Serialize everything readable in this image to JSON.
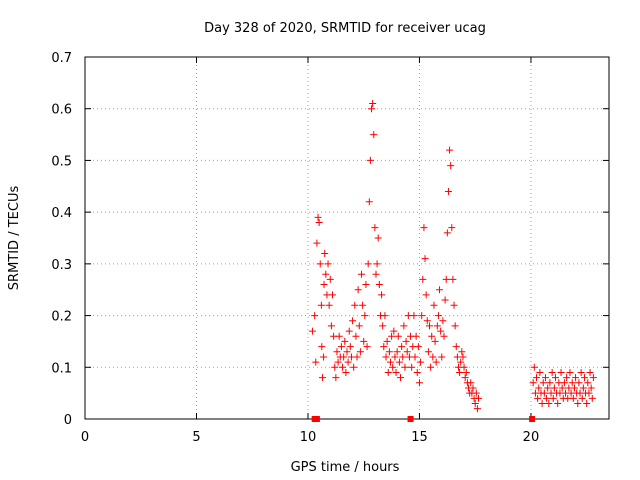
{
  "chart_data": {
    "type": "scatter",
    "title": "Day 328 of 2020, SRMTID for receiver ucag",
    "xlabel": "GPS time / hours",
    "ylabel": "SRMTID / TECUs",
    "xlim": [
      0,
      23.5
    ],
    "ylim": [
      0,
      0.7
    ],
    "x_ticks": [
      0,
      5,
      10,
      15,
      20
    ],
    "y_ticks": [
      0,
      0.1,
      0.2,
      0.3,
      0.4,
      0.5,
      0.6,
      0.7
    ],
    "x_tick_labels": [
      "0",
      "5",
      "10",
      "15",
      "20"
    ],
    "y_tick_labels": [
      "0",
      "0.1",
      "0.2",
      "0.3",
      "0.4",
      "0.5",
      "0.6",
      "0.7"
    ],
    "grid": true,
    "series": [
      {
        "name": "SRMTID",
        "color": "#ff0000",
        "marker": "plus",
        "points": [
          [
            10.2,
            0.17
          ],
          [
            10.3,
            0.2
          ],
          [
            10.35,
            0.11
          ],
          [
            10.4,
            0.34
          ],
          [
            10.45,
            0.39
          ],
          [
            10.5,
            0.38
          ],
          [
            10.55,
            0.3
          ],
          [
            10.6,
            0.22
          ],
          [
            10.62,
            0.14
          ],
          [
            10.65,
            0.08
          ],
          [
            10.7,
            0.12
          ],
          [
            10.72,
            0.26
          ],
          [
            10.75,
            0.32
          ],
          [
            10.8,
            0.28
          ],
          [
            10.85,
            0.24
          ],
          [
            10.9,
            0.3
          ],
          [
            10.95,
            0.22
          ],
          [
            11.0,
            0.27
          ],
          [
            11.05,
            0.18
          ],
          [
            11.1,
            0.24
          ],
          [
            11.15,
            0.16
          ],
          [
            11.2,
            0.1
          ],
          [
            11.25,
            0.08
          ],
          [
            11.3,
            0.13
          ],
          [
            11.35,
            0.11
          ],
          [
            11.4,
            0.16
          ],
          [
            11.45,
            0.12
          ],
          [
            11.5,
            0.14
          ],
          [
            11.55,
            0.1
          ],
          [
            11.6,
            0.12
          ],
          [
            11.65,
            0.15
          ],
          [
            11.7,
            0.09
          ],
          [
            11.75,
            0.13
          ],
          [
            11.8,
            0.11
          ],
          [
            11.85,
            0.17
          ],
          [
            11.9,
            0.14
          ],
          [
            11.95,
            0.12
          ],
          [
            12.0,
            0.19
          ],
          [
            12.05,
            0.1
          ],
          [
            12.1,
            0.22
          ],
          [
            12.15,
            0.16
          ],
          [
            12.2,
            0.12
          ],
          [
            12.25,
            0.25
          ],
          [
            12.3,
            0.18
          ],
          [
            12.35,
            0.13
          ],
          [
            12.4,
            0.28
          ],
          [
            12.45,
            0.22
          ],
          [
            12.5,
            0.15
          ],
          [
            12.55,
            0.2
          ],
          [
            12.6,
            0.26
          ],
          [
            12.65,
            0.14
          ],
          [
            12.7,
            0.3
          ],
          [
            12.75,
            0.42
          ],
          [
            12.8,
            0.5
          ],
          [
            12.85,
            0.6
          ],
          [
            12.9,
            0.61
          ],
          [
            12.95,
            0.55
          ],
          [
            13.0,
            0.37
          ],
          [
            13.05,
            0.28
          ],
          [
            13.1,
            0.3
          ],
          [
            13.15,
            0.35
          ],
          [
            13.2,
            0.26
          ],
          [
            13.25,
            0.2
          ],
          [
            13.3,
            0.24
          ],
          [
            13.35,
            0.18
          ],
          [
            13.4,
            0.14
          ],
          [
            13.45,
            0.2
          ],
          [
            13.5,
            0.12
          ],
          [
            13.55,
            0.15
          ],
          [
            13.6,
            0.09
          ],
          [
            13.65,
            0.13
          ],
          [
            13.7,
            0.11
          ],
          [
            13.75,
            0.16
          ],
          [
            13.8,
            0.1
          ],
          [
            13.85,
            0.17
          ],
          [
            13.9,
            0.12
          ],
          [
            13.95,
            0.09
          ],
          [
            14.0,
            0.13
          ],
          [
            14.05,
            0.16
          ],
          [
            14.1,
            0.11
          ],
          [
            14.15,
            0.08
          ],
          [
            14.2,
            0.14
          ],
          [
            14.25,
            0.12
          ],
          [
            14.3,
            0.18
          ],
          [
            14.35,
            0.1
          ],
          [
            14.4,
            0.15
          ],
          [
            14.45,
            0.13
          ],
          [
            14.5,
            0.2
          ],
          [
            14.55,
            0.12
          ],
          [
            14.6,
            0.16
          ],
          [
            14.65,
            0.1
          ],
          [
            14.7,
            0.14
          ],
          [
            14.75,
            0.2
          ],
          [
            14.8,
            0.12
          ],
          [
            14.85,
            0.16
          ],
          [
            14.9,
            0.09
          ],
          [
            14.95,
            0.14
          ],
          [
            15.0,
            0.07
          ],
          [
            15.05,
            0.11
          ],
          [
            15.1,
            0.2
          ],
          [
            15.15,
            0.27
          ],
          [
            15.2,
            0.37
          ],
          [
            15.25,
            0.31
          ],
          [
            15.3,
            0.24
          ],
          [
            15.35,
            0.19
          ],
          [
            15.4,
            0.13
          ],
          [
            15.45,
            0.18
          ],
          [
            15.5,
            0.1
          ],
          [
            15.55,
            0.16
          ],
          [
            15.6,
            0.12
          ],
          [
            15.65,
            0.22
          ],
          [
            15.7,
            0.15
          ],
          [
            15.75,
            0.11
          ],
          [
            15.8,
            0.18
          ],
          [
            15.85,
            0.2
          ],
          [
            15.9,
            0.25
          ],
          [
            15.95,
            0.17
          ],
          [
            16.0,
            0.12
          ],
          [
            16.05,
            0.19
          ],
          [
            16.1,
            0.16
          ],
          [
            16.15,
            0.23
          ],
          [
            16.2,
            0.27
          ],
          [
            16.25,
            0.36
          ],
          [
            16.3,
            0.44
          ],
          [
            16.35,
            0.52
          ],
          [
            16.4,
            0.49
          ],
          [
            16.45,
            0.37
          ],
          [
            16.5,
            0.27
          ],
          [
            16.55,
            0.22
          ],
          [
            16.6,
            0.18
          ],
          [
            16.65,
            0.14
          ],
          [
            16.7,
            0.12
          ],
          [
            16.75,
            0.1
          ],
          [
            16.8,
            0.09
          ],
          [
            16.85,
            0.11
          ],
          [
            16.9,
            0.13
          ],
          [
            16.95,
            0.12
          ],
          [
            17.0,
            0.1
          ],
          [
            17.05,
            0.08
          ],
          [
            17.1,
            0.09
          ],
          [
            17.15,
            0.07
          ],
          [
            17.2,
            0.06
          ],
          [
            17.25,
            0.05
          ],
          [
            17.3,
            0.07
          ],
          [
            17.35,
            0.05
          ],
          [
            17.4,
            0.06
          ],
          [
            17.45,
            0.04
          ],
          [
            17.5,
            0.03
          ],
          [
            17.55,
            0.05
          ],
          [
            17.6,
            0.02
          ],
          [
            17.65,
            0.04
          ],
          [
            20.1,
            0.07
          ],
          [
            20.15,
            0.1
          ],
          [
            20.2,
            0.05
          ],
          [
            20.25,
            0.08
          ],
          [
            20.3,
            0.04
          ],
          [
            20.35,
            0.06
          ],
          [
            20.4,
            0.09
          ],
          [
            20.45,
            0.05
          ],
          [
            20.5,
            0.03
          ],
          [
            20.55,
            0.07
          ],
          [
            20.6,
            0.05
          ],
          [
            20.65,
            0.08
          ],
          [
            20.7,
            0.04
          ],
          [
            20.75,
            0.06
          ],
          [
            20.8,
            0.03
          ],
          [
            20.85,
            0.07
          ],
          [
            20.9,
            0.05
          ],
          [
            20.95,
            0.09
          ],
          [
            21.0,
            0.04
          ],
          [
            21.05,
            0.06
          ],
          [
            21.1,
            0.08
          ],
          [
            21.15,
            0.05
          ],
          [
            21.2,
            0.03
          ],
          [
            21.25,
            0.07
          ],
          [
            21.3,
            0.05
          ],
          [
            21.35,
            0.09
          ],
          [
            21.4,
            0.06
          ],
          [
            21.45,
            0.04
          ],
          [
            21.5,
            0.07
          ],
          [
            21.55,
            0.05
          ],
          [
            21.6,
            0.08
          ],
          [
            21.65,
            0.04
          ],
          [
            21.7,
            0.06
          ],
          [
            21.75,
            0.09
          ],
          [
            21.8,
            0.05
          ],
          [
            21.85,
            0.07
          ],
          [
            21.9,
            0.04
          ],
          [
            21.95,
            0.06
          ],
          [
            22.0,
            0.08
          ],
          [
            22.05,
            0.05
          ],
          [
            22.1,
            0.03
          ],
          [
            22.15,
            0.07
          ],
          [
            22.2,
            0.05
          ],
          [
            22.25,
            0.09
          ],
          [
            22.3,
            0.04
          ],
          [
            22.35,
            0.06
          ],
          [
            22.4,
            0.08
          ],
          [
            22.45,
            0.05
          ],
          [
            22.5,
            0.03
          ],
          [
            22.55,
            0.07
          ],
          [
            22.6,
            0.05
          ],
          [
            22.65,
            0.09
          ],
          [
            22.7,
            0.06
          ],
          [
            22.75,
            0.04
          ],
          [
            22.8,
            0.08
          ]
        ]
      }
    ],
    "zero_markers": [
      10.3,
      10.4,
      14.6,
      20.05
    ]
  }
}
